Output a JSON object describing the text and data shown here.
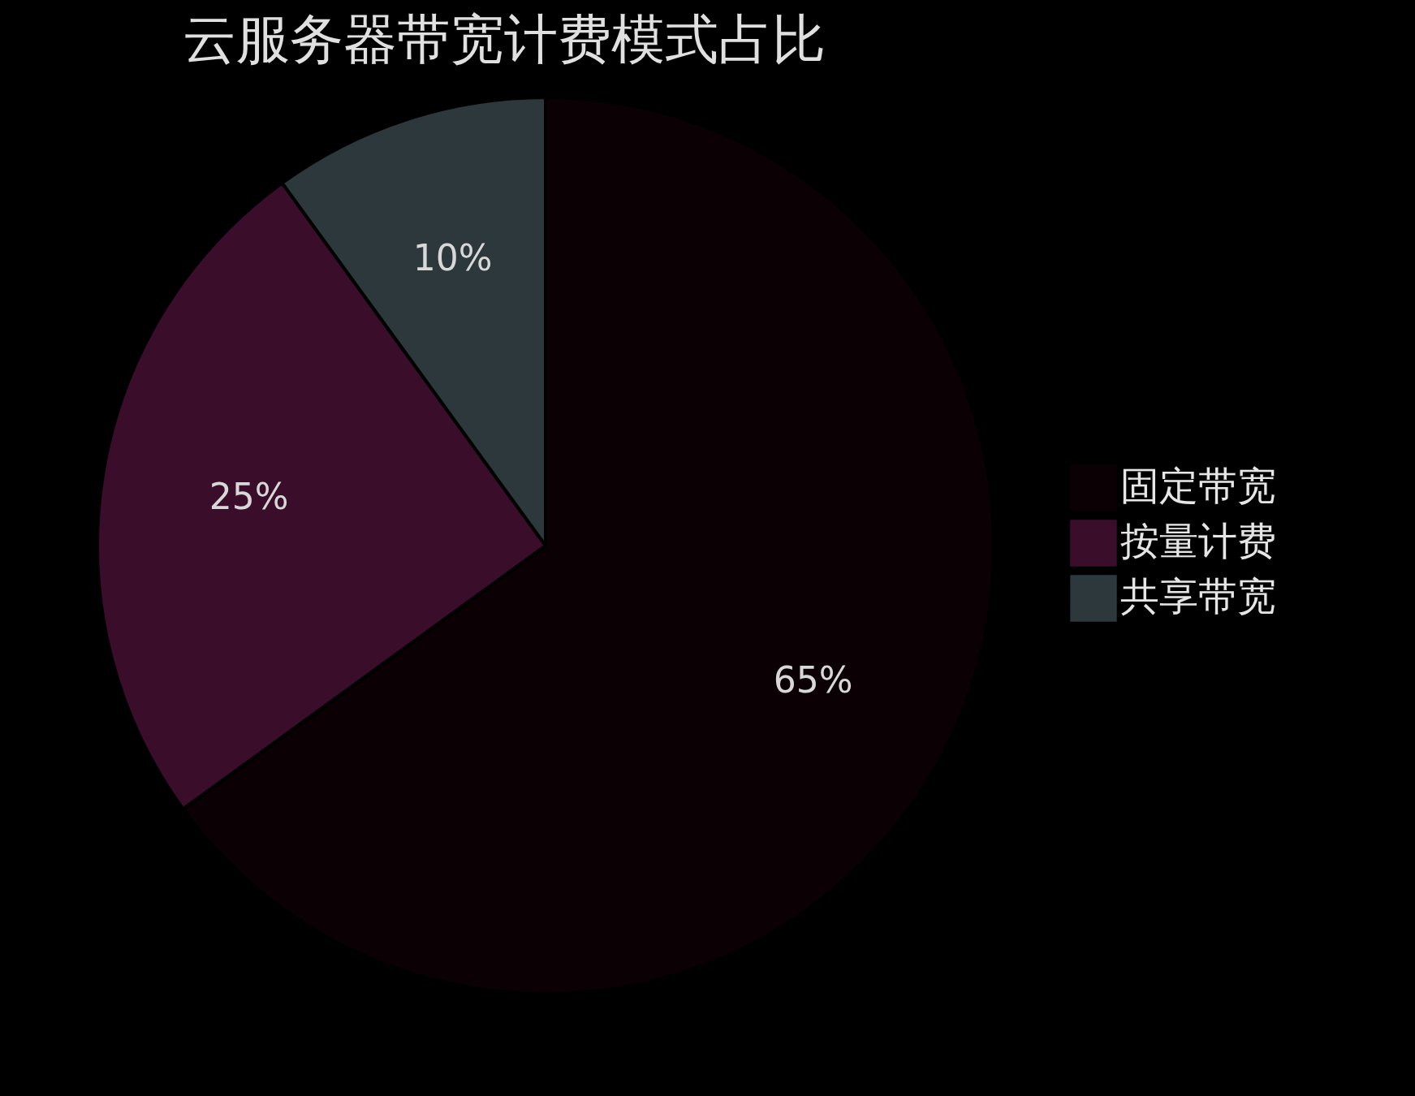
{
  "chart_data": {
    "type": "pie",
    "title": "云服务器带宽计费模式占比",
    "categories": [
      "固定带宽",
      "按量计费",
      "共享带宽"
    ],
    "values": [
      65,
      25,
      10
    ],
    "colors": [
      "#0b0003",
      "#3a0e2b",
      "#2c383c"
    ],
    "value_labels": [
      "65%",
      "25%",
      "10%"
    ],
    "legend": "right"
  }
}
